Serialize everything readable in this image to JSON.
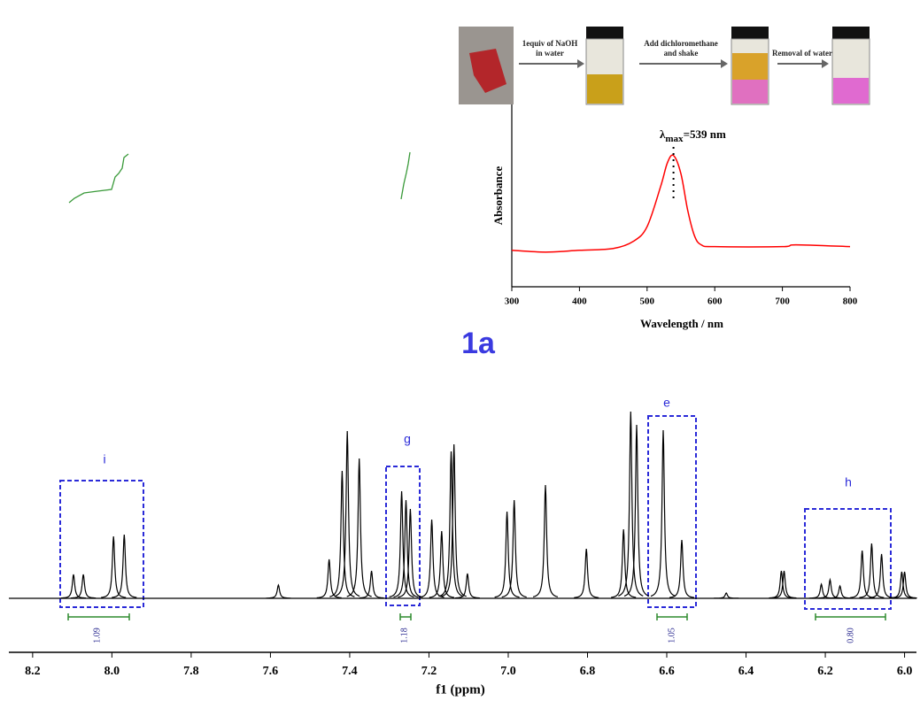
{
  "scheme": {
    "steps": [
      [
        "1equiv of NaOH",
        "in water"
      ],
      [
        "Add dichloromethane",
        "and shake"
      ],
      [
        "Removal of water"
      ]
    ]
  },
  "compound_label": "1a",
  "chart_data": [
    {
      "type": "nmr",
      "xlabel": "f1 (ppm)",
      "xlim": [
        8.26,
        5.97
      ],
      "xticks": [
        8.2,
        {
          "value": 8,
          "label": "8.0"
        },
        7.8,
        7.6,
        7.4,
        7.2,
        {
          "value": 7,
          "label": "7.0"
        },
        6.8,
        6.6,
        6.4,
        6.2,
        {
          "value": 6,
          "label": "6.0"
        }
      ],
      "color": "#000000",
      "x": [
        8.097,
        8.072,
        7.996,
        7.969,
        7.58,
        7.452,
        7.419,
        7.406,
        7.376,
        7.345,
        7.269,
        7.258,
        7.247,
        7.193,
        7.168,
        7.144,
        7.137,
        7.103,
        7.003,
        6.985,
        6.906,
        6.803,
        6.709,
        6.691,
        6.676,
        6.609,
        6.562,
        6.45,
        6.311,
        6.304,
        6.21,
        6.188,
        6.163,
        6.107,
        6.083,
        6.058,
        6.007,
        6.0
      ],
      "values": [
        27,
        27,
        70,
        72,
        15,
        44,
        144,
        189,
        158,
        31,
        121,
        111,
        101,
        89,
        76,
        166,
        174,
        28,
        98,
        111,
        128,
        56,
        78,
        211,
        196,
        190,
        66,
        6,
        31,
        31,
        16,
        21,
        14,
        54,
        62,
        50,
        30,
        30
      ],
      "regions": [
        "i",
        "g",
        "e",
        "h"
      ],
      "integrations": [
        "1.09",
        "1.18",
        "1.05",
        "0.80"
      ]
    },
    {
      "type": "line",
      "xlabel": "Wavelength / nm",
      "ylabel": "Absorbance",
      "annotation": {
        "symbol": "λ",
        "subscript": "max",
        "text": "=539 nm"
      },
      "peak_x": 539,
      "xlim": [
        300,
        800
      ],
      "xticks": [
        300,
        400,
        500,
        600,
        700,
        800
      ],
      "ylim": [
        0,
        1
      ],
      "series": [
        {
          "color": "#ff0000",
          "x": [
            300,
            350,
            400,
            450,
            480,
            500,
            520,
            530,
            539,
            550,
            560,
            570,
            580,
            600,
            700,
            720,
            800
          ],
          "values": [
            0.2,
            0.19,
            0.2,
            0.21,
            0.25,
            0.33,
            0.55,
            0.68,
            0.72,
            0.62,
            0.42,
            0.28,
            0.23,
            0.22,
            0.22,
            0.23,
            0.22
          ]
        }
      ]
    }
  ]
}
